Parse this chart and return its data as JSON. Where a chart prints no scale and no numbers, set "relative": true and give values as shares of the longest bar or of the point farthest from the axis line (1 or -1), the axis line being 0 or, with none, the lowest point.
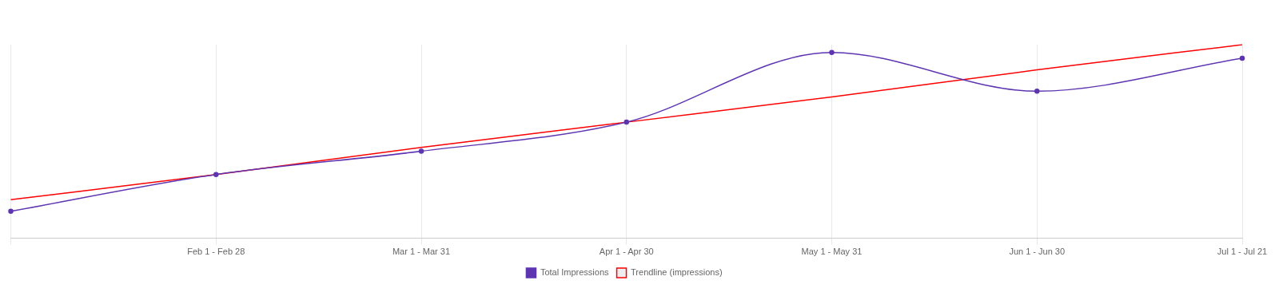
{
  "chart_data": {
    "type": "line",
    "relative": true,
    "grid": "x",
    "legend": "bottom",
    "categories": [
      null,
      "Feb 1 - Feb 28",
      "Mar 1 - Mar 31",
      "Apr 1 - Apr 30",
      "May 1 - May 31",
      "Jun 1 - Jun 30",
      "Jul 1 - Jul 21"
    ],
    "series": [
      {
        "name": "Total Impressions",
        "color": "#5e35b1",
        "marker": "circle",
        "values": [
          0.14,
          0.33,
          0.45,
          0.6,
          0.96,
          0.76,
          0.93
        ]
      },
      {
        "name": "Trendline (impressions)",
        "color": "#ff0000",
        "marker": "none",
        "values": [
          0.2,
          0.33,
          0.47,
          0.6,
          0.73,
          0.87,
          1.0
        ]
      }
    ]
  }
}
